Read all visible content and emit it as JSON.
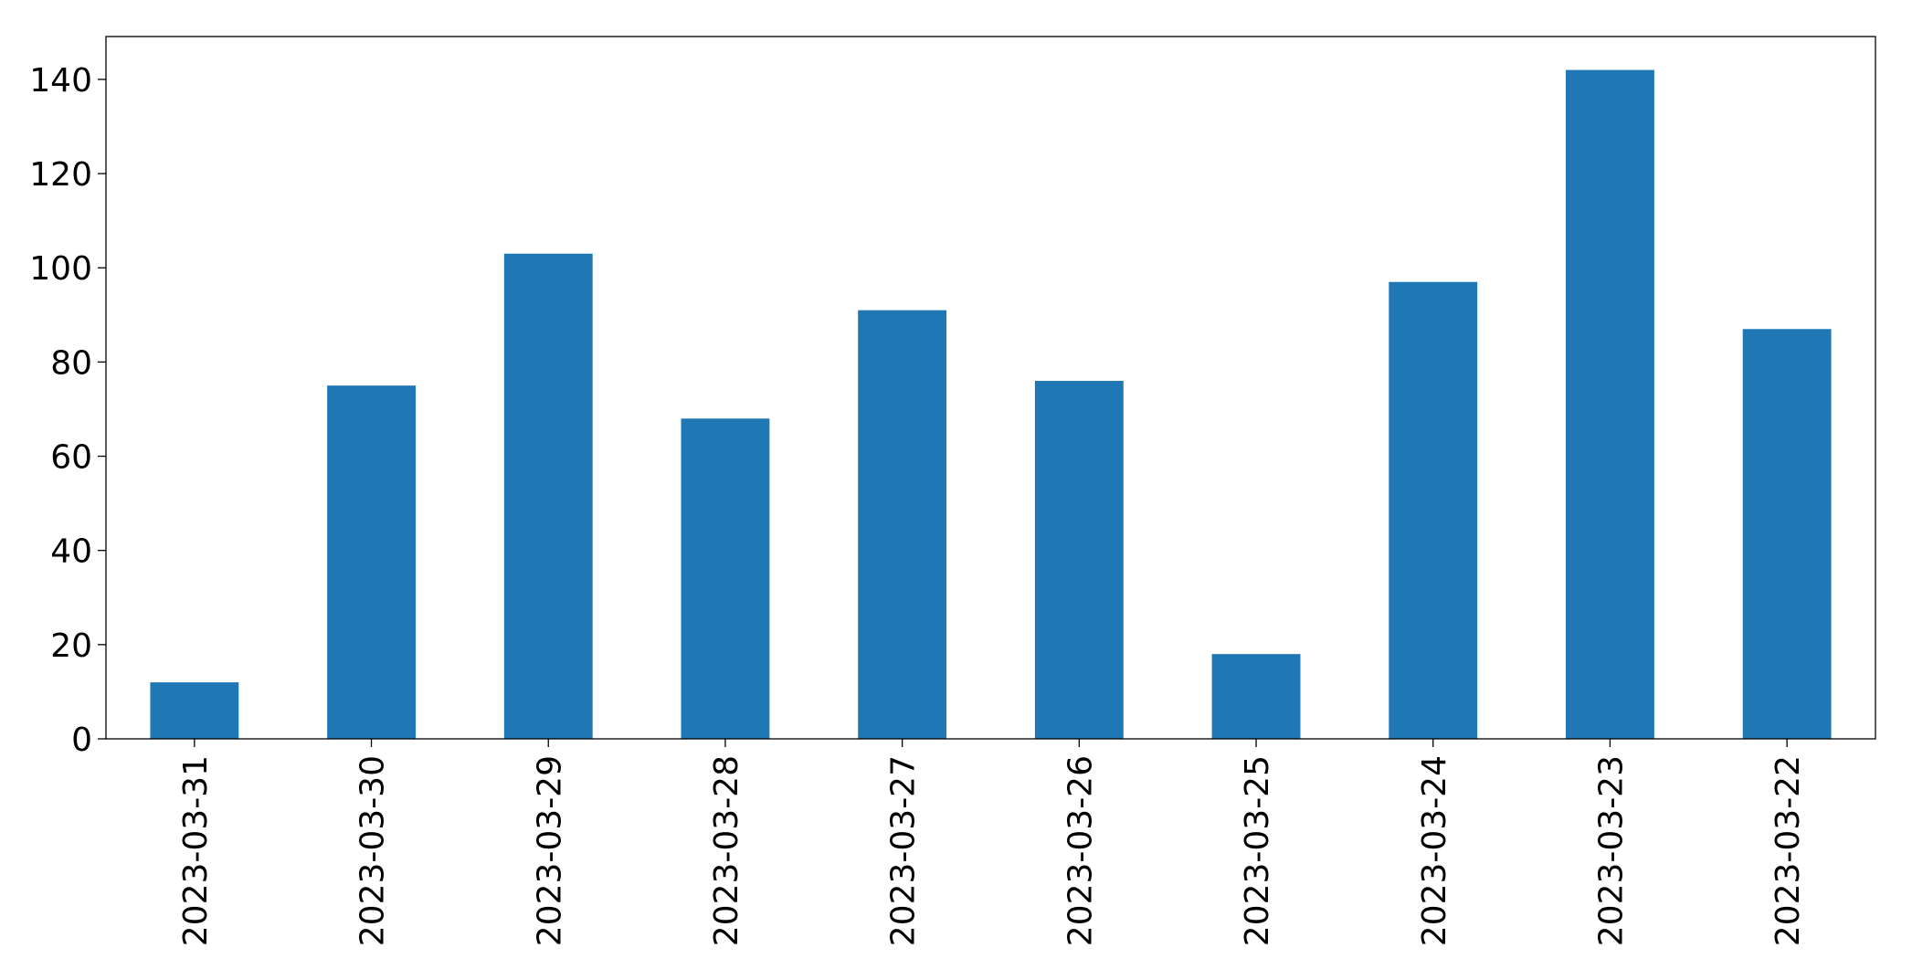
{
  "chart_data": {
    "type": "bar",
    "categories": [
      "2023-03-31",
      "2023-03-30",
      "2023-03-29",
      "2023-03-28",
      "2023-03-27",
      "2023-03-26",
      "2023-03-25",
      "2023-03-24",
      "2023-03-23",
      "2023-03-22"
    ],
    "values": [
      12,
      75,
      103,
      68,
      91,
      76,
      18,
      97,
      142,
      87
    ],
    "color": "#1f77b4",
    "ylim": [
      0,
      149.1
    ],
    "yticks": [
      0,
      20,
      40,
      60,
      80,
      100,
      120,
      140
    ],
    "grid": false
  }
}
